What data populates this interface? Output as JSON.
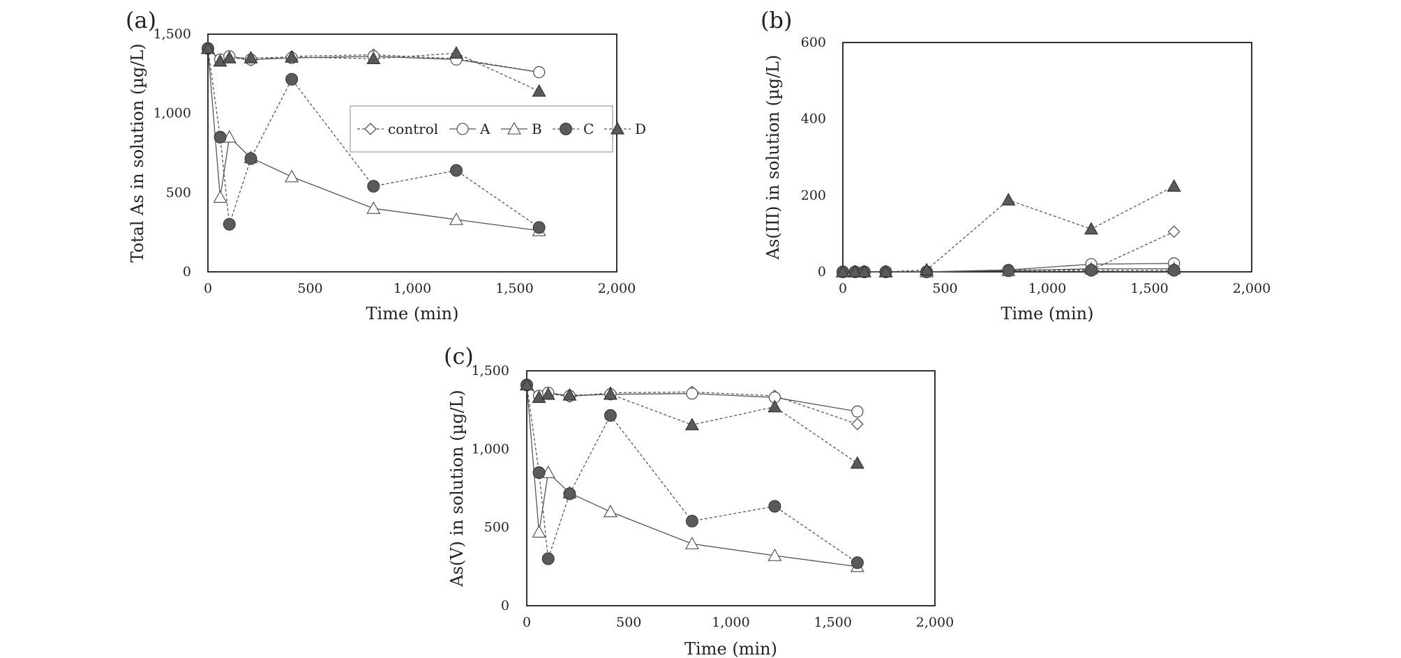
{
  "chart_data": [
    {
      "type": "line",
      "panel_label": "(a)",
      "xlabel": "Time (min)",
      "ylabel": "Total As in solution (µg/L)",
      "xlim": [
        0,
        2000
      ],
      "ylim": [
        0,
        1500
      ],
      "xticks": [
        "0",
        "500",
        "1,000",
        "1,500",
        "2,000"
      ],
      "yticks": [
        "0",
        "500",
        "1,000",
        "1,500"
      ],
      "legend": "top-right",
      "x": [
        0,
        60,
        105,
        210,
        410,
        810,
        1215,
        1620
      ],
      "series": [
        {
          "name": "control",
          "marker": "diamond-open",
          "line": "dashed",
          "values": [
            1410,
            1335,
            1355,
            1335,
            1360,
            1370,
            1345,
            1260
          ]
        },
        {
          "name": "A",
          "marker": "circle-open",
          "line": "solid",
          "values": [
            1410,
            1340,
            1360,
            1340,
            1350,
            1360,
            1340,
            1260
          ]
        },
        {
          "name": "B",
          "marker": "triangle-open",
          "line": "solid",
          "values": [
            1410,
            470,
            850,
            720,
            600,
            400,
            330,
            260
          ]
        },
        {
          "name": "C",
          "marker": "circle-filled",
          "line": "dashed",
          "values": [
            1410,
            850,
            300,
            715,
            1215,
            540,
            640,
            280
          ]
        },
        {
          "name": "D",
          "marker": "triangle-filled",
          "line": "dashed",
          "values": [
            1410,
            1330,
            1350,
            1350,
            1355,
            1345,
            1380,
            1140
          ]
        }
      ]
    },
    {
      "type": "line",
      "panel_label": "(b)",
      "xlabel": "Time (min)",
      "ylabel": "As(III) in solution (µg/L)",
      "xlim": [
        0,
        2000
      ],
      "ylim": [
        0,
        600
      ],
      "xticks": [
        "0",
        "500",
        "1,000",
        "1,500",
        "2,000"
      ],
      "yticks": [
        "0",
        "200",
        "400",
        "600"
      ],
      "x": [
        0,
        60,
        105,
        210,
        410,
        810,
        1215,
        1620
      ],
      "series": [
        {
          "name": "control",
          "marker": "diamond-open",
          "line": "dashed",
          "values": [
            0,
            0,
            0,
            0,
            0,
            5,
            5,
            105
          ]
        },
        {
          "name": "A",
          "marker": "circle-open",
          "line": "solid",
          "values": [
            0,
            0,
            0,
            0,
            0,
            5,
            20,
            22
          ]
        },
        {
          "name": "B",
          "marker": "triangle-open",
          "line": "solid",
          "values": [
            0,
            0,
            0,
            0,
            0,
            3,
            8,
            8
          ]
        },
        {
          "name": "C",
          "marker": "circle-filled",
          "line": "dashed",
          "values": [
            0,
            0,
            0,
            0,
            0,
            3,
            4,
            4
          ]
        },
        {
          "name": "D",
          "marker": "triangle-filled",
          "line": "dashed",
          "values": [
            0,
            0,
            0,
            0,
            5,
            188,
            112,
            224
          ]
        }
      ]
    },
    {
      "type": "line",
      "panel_label": "(c)",
      "xlabel": "Time (min)",
      "ylabel": "As(V) in solution (µg/L)",
      "xlim": [
        0,
        2000
      ],
      "ylim": [
        0,
        1500
      ],
      "xticks": [
        "0",
        "500",
        "1,000",
        "1,500",
        "2,000"
      ],
      "yticks": [
        "0",
        "500",
        "1,000",
        "1,500"
      ],
      "x": [
        0,
        60,
        105,
        210,
        410,
        810,
        1215,
        1620
      ],
      "series": [
        {
          "name": "control",
          "marker": "diamond-open",
          "line": "dashed",
          "values": [
            1410,
            1335,
            1355,
            1335,
            1360,
            1365,
            1340,
            1160
          ]
        },
        {
          "name": "A",
          "marker": "circle-open",
          "line": "solid",
          "values": [
            1410,
            1340,
            1360,
            1340,
            1350,
            1355,
            1330,
            1240
          ]
        },
        {
          "name": "B",
          "marker": "triangle-open",
          "line": "solid",
          "values": [
            1410,
            470,
            850,
            720,
            600,
            395,
            320,
            250
          ]
        },
        {
          "name": "C",
          "marker": "circle-filled",
          "line": "dashed",
          "values": [
            1410,
            850,
            300,
            715,
            1215,
            540,
            635,
            275
          ]
        },
        {
          "name": "D",
          "marker": "triangle-filled",
          "line": "dashed",
          "values": [
            1410,
            1330,
            1350,
            1345,
            1350,
            1155,
            1270,
            910
          ]
        }
      ]
    }
  ],
  "colors": {
    "filled_marker": "#5a5a5a",
    "open_marker_stroke": "#555555",
    "line": "#555555",
    "frame": "#000000"
  }
}
